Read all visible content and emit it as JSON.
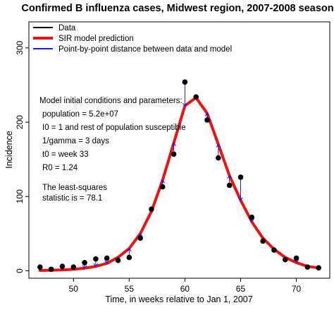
{
  "chart_data": {
    "type": "line",
    "title": "Confirmed B influenza cases, Midwest region, 2007-2008 season",
    "xlabel": "Time, in weeks relative to Jan 1, 2007",
    "ylabel": "Incidence",
    "xlim": [
      46,
      73
    ],
    "ylim": [
      -10,
      335
    ],
    "x_ticks": [
      50,
      55,
      60,
      65,
      70
    ],
    "y_ticks": [
      0,
      100,
      200,
      300
    ],
    "grid": false,
    "legend_position": "top-left",
    "legend": [
      {
        "label": "Data",
        "color": "#000000"
      },
      {
        "label": "SIR model prediction",
        "color": "#ee1111"
      },
      {
        "label": "Point-by-point distance between data and model",
        "color": "#1a1aee"
      }
    ],
    "series": [
      {
        "name": "Data",
        "kind": "points",
        "color": "#000000",
        "x": [
          47,
          48,
          49,
          50,
          51,
          52,
          53,
          54,
          55,
          56,
          57,
          58,
          59,
          60,
          61,
          62,
          63,
          64,
          65,
          66,
          67,
          68,
          69,
          70,
          71,
          72
        ],
        "y": [
          5,
          2,
          6,
          5,
          11,
          16,
          17,
          14,
          18,
          44,
          83,
          113,
          157,
          254,
          234,
          203,
          152,
          115,
          126,
          72,
          40,
          28,
          15,
          17,
          5,
          4
        ]
      },
      {
        "name": "SIR model prediction",
        "kind": "line",
        "color": "#ee1111",
        "x": [
          47,
          48,
          49,
          50,
          51,
          52,
          53,
          54,
          55,
          56,
          57,
          58,
          59,
          60,
          61,
          62,
          63,
          64,
          65,
          66,
          67,
          68,
          69,
          70,
          71,
          72
        ],
        "y": [
          0.5,
          0.8,
          1.2,
          2,
          3.5,
          6,
          10,
          18,
          30,
          50,
          80,
          122,
          172,
          222,
          233,
          212,
          170,
          128,
          95,
          66,
          44,
          29,
          18,
          11,
          6,
          4
        ]
      }
    ],
    "distance_segments": {
      "name": "Point-by-point distance between data and model",
      "color": "#1a1aee"
    }
  },
  "annotation": {
    "lines": [
      "Model initial conditions and parameters:",
      "population = 5.2e+07",
      "I0 = 1 and rest of population susceptible",
      "1/gamma  = 3 days",
      "t0  = week 33",
      "R0 = 1.24",
      "",
      "The least-squares",
      "statistic is = 78.1"
    ]
  }
}
